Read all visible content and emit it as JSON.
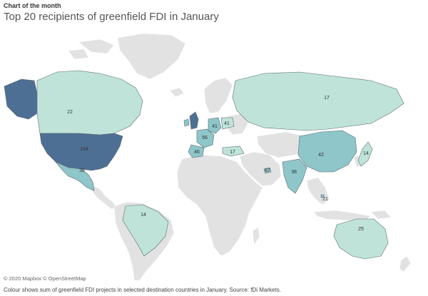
{
  "kicker": "Chart of the month",
  "title": "Top 20 recipients of greenfield FDI in January",
  "credit": "© 2020 Mapbox © OpenStreetMap",
  "footnote": "Colour shows sum of greenfield FDI projects in selected destination countries in January. Source: fDi Markets.",
  "colors": {
    "ocean": "#ffffff",
    "land": "#e2e2e2",
    "border": "#ffffff",
    "low": "#bfe3d8",
    "mid": "#8ec6c9",
    "high": "#4e6f94",
    "stroke": "#5a6a74"
  },
  "labels": {
    "alaska": "",
    "canada": "22",
    "usa": "154",
    "mexico": "39",
    "brazil": "14",
    "uk": "",
    "ireland": "",
    "france": "56",
    "germany": "41",
    "poland": "41",
    "spain": "46",
    "turkey": "17",
    "russia": "17",
    "uae": "67",
    "india": "38",
    "china": "42",
    "japan": "14",
    "singapore": "21",
    "australia": "25"
  }
}
